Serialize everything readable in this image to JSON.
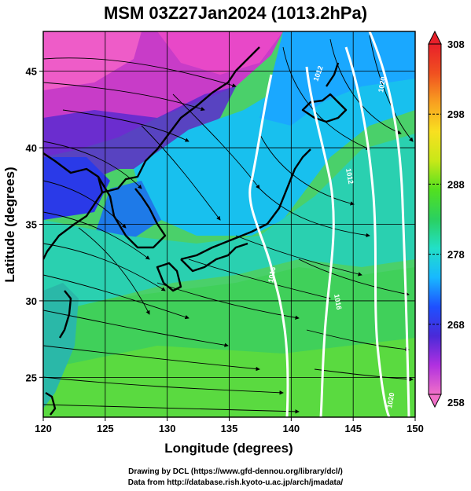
{
  "title": "MSM 03Z27Jan2024 (1013.2hPa)",
  "xaxis": {
    "label": "Longitude (degrees)",
    "ticks": [
      120,
      125,
      130,
      135,
      140,
      145,
      150
    ],
    "range": [
      120,
      150
    ]
  },
  "yaxis": {
    "label": "Latitude  (degrees)",
    "ticks": [
      25,
      30,
      35,
      40,
      45
    ],
    "range": [
      22.4,
      47.6
    ]
  },
  "colorbar": {
    "ticks": [
      258,
      268,
      278,
      288,
      298,
      308
    ],
    "min": 258,
    "max": 308,
    "colors": [
      "#f070c8",
      "#b030e0",
      "#4a2ad8",
      "#1e50ff",
      "#18b8ff",
      "#22e0c8",
      "#2ad060",
      "#52e020",
      "#c8e818",
      "#f8e020",
      "#f8a020",
      "#f05020",
      "#e8202a"
    ]
  },
  "contours": [
    "1012",
    "1012",
    "1016",
    "1016",
    "1020",
    "1020"
  ],
  "credits": [
    "Drawing by DCL (https://www.gfd-dennou.org/library/dcl/)",
    "Data from http://database.rish.kyoto-u.ac.jp/arch/jmadata/"
  ]
}
